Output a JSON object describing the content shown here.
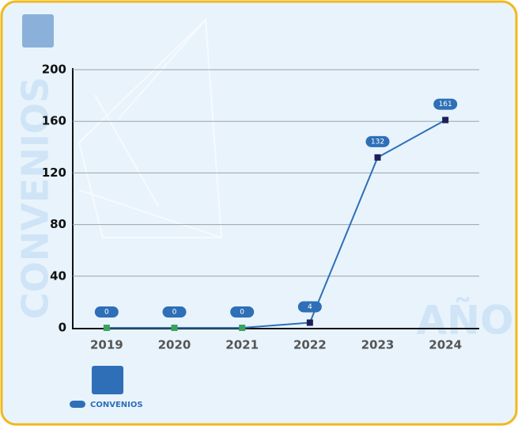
{
  "chart_data": {
    "type": "line",
    "y_label": "CONVENIOS",
    "x_label": "AÑO",
    "categories": [
      "2019",
      "2020",
      "2021",
      "2022",
      "2023",
      "2024"
    ],
    "series": [
      {
        "name": "CONVENIOS",
        "color": "#2e6fb7",
        "values": [
          0,
          0,
          0,
          4,
          132,
          161
        ],
        "marker_colors": [
          "#3aa35b",
          "#3aa35b",
          "#3aa35b",
          "#1c1f5a",
          "#1c1f5a",
          "#1c1f5a"
        ]
      }
    ],
    "ylim": [
      0,
      200
    ],
    "yticks": [
      0,
      40,
      80,
      120,
      160,
      200
    ],
    "grid": true
  }
}
